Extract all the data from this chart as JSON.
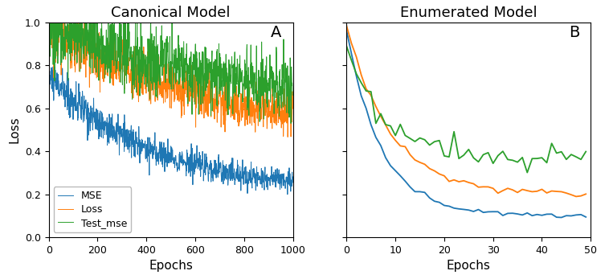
{
  "panel_A": {
    "title": "Canonical Model",
    "label": "A",
    "xlabel": "Epochs",
    "ylabel": "Loss",
    "xlim": [
      0,
      1000
    ],
    "ylim": [
      0.0,
      1.0
    ],
    "xticks": [
      0,
      200,
      400,
      600,
      800,
      1000
    ],
    "yticks": [
      0.0,
      0.2,
      0.4,
      0.6,
      0.8,
      1.0
    ],
    "mse_color": "#1f77b4",
    "loss_color": "#ff7f0e",
    "test_color": "#2ca02c",
    "linewidth": 0.7
  },
  "panel_B": {
    "title": "Enumerated Model",
    "label": "B",
    "xlabel": "Epochs",
    "ylabel": "",
    "xlim": [
      0,
      50
    ],
    "xticks": [
      0,
      10,
      20,
      30,
      40,
      50
    ],
    "mse_color": "#1f77b4",
    "loss_color": "#ff7f0e",
    "test_color": "#2ca02c",
    "linewidth": 1.3
  },
  "legend_labels": [
    "MSE",
    "Loss",
    "Test_mse"
  ],
  "figsize": [
    7.58,
    3.47
  ],
  "dpi": 100
}
